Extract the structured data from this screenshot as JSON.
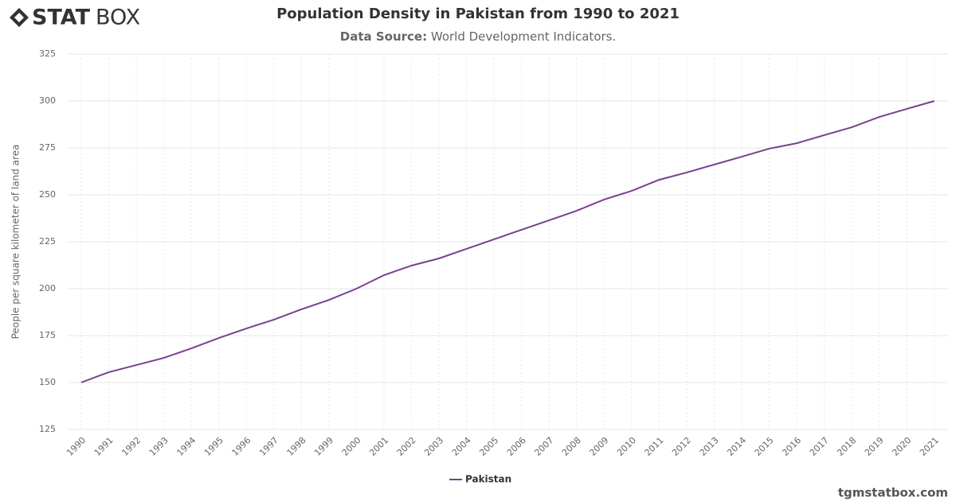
{
  "logo": {
    "bold": "STAT",
    "light": "BOX"
  },
  "footer": "tgmstatbox.com",
  "chart_data": {
    "type": "line",
    "title": "Population Density in Pakistan from 1990 to 2021",
    "source_label": "Data Source:",
    "source": "World Development Indicators.",
    "y_label": "People per square kilometer of land area",
    "categories": [
      "1990",
      "1991",
      "1992",
      "1993",
      "1994",
      "1995",
      "1996",
      "1997",
      "1998",
      "1999",
      "2000",
      "2001",
      "2002",
      "2003",
      "2004",
      "2005",
      "2006",
      "2007",
      "2008",
      "2009",
      "2010",
      "2011",
      "2012",
      "2013",
      "2014",
      "2015",
      "2016",
      "2017",
      "2018",
      "2019",
      "2020",
      "2021"
    ],
    "series": [
      {
        "name": "Pakistan",
        "color": "#7b3f8c",
        "values": [
          150,
          155.5,
          159.3,
          163.1,
          168.2,
          173.7,
          178.8,
          183.5,
          189,
          194,
          200,
          207.2,
          212.3,
          216.1,
          221.2,
          226.3,
          231.4,
          236.4,
          241.5,
          247.5,
          252.1,
          258,
          261.9,
          266.1,
          270.3,
          274.6,
          277.5,
          281.8,
          286,
          291.5,
          295.8,
          300
        ]
      }
    ],
    "ylim": [
      125,
      325
    ],
    "yticks": [
      125,
      150,
      175,
      200,
      225,
      250,
      275,
      300,
      325
    ],
    "grid": true
  }
}
